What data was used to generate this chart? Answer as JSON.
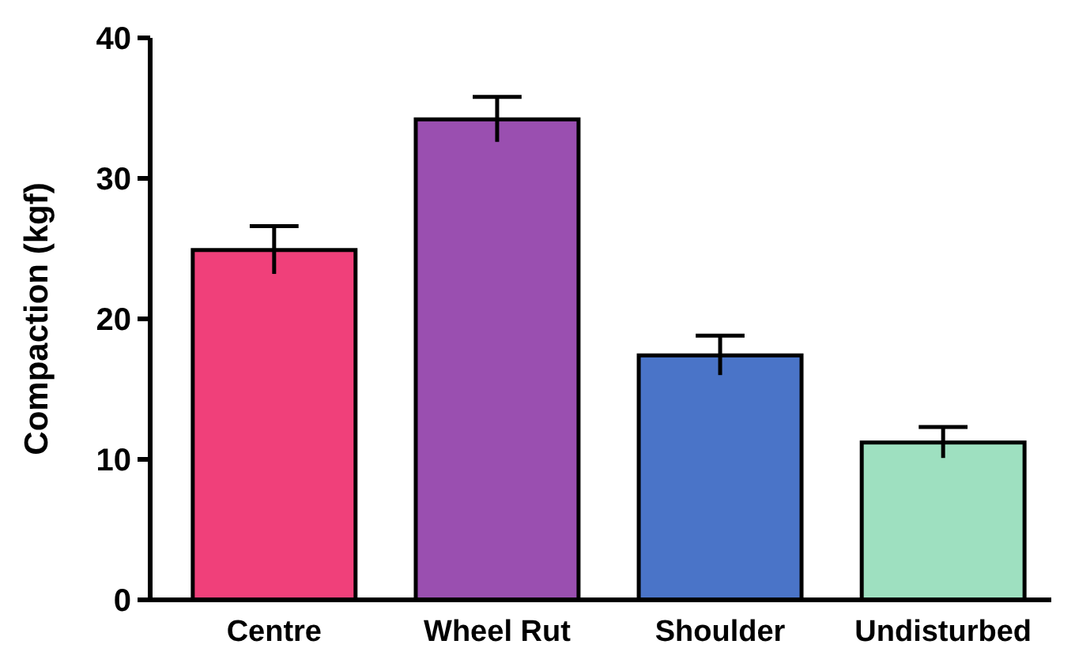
{
  "chart_data": {
    "type": "bar",
    "ylabel": "Compaction (kgf)",
    "categories": [
      "Centre",
      "Wheel Rut",
      "Shoulder",
      "Undisturbed"
    ],
    "values": [
      24.9,
      34.2,
      17.4,
      11.2
    ],
    "colors": [
      "#f0407a",
      "#9a4fb0",
      "#4a74c8",
      "#9ee0c0"
    ],
    "errors": [
      1.7,
      1.6,
      1.4,
      1.1
    ],
    "ylim": [
      0,
      40
    ],
    "yticks": [
      0,
      10,
      20,
      30,
      40
    ],
    "grid": false
  }
}
